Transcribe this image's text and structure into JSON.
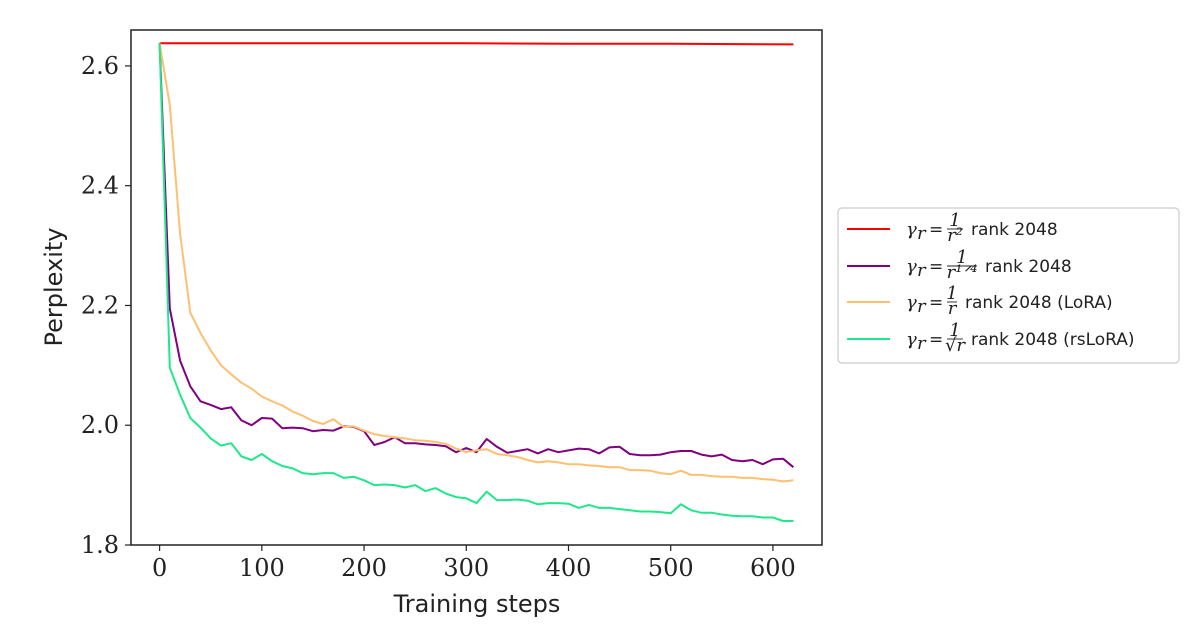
{
  "chart_data": {
    "type": "line",
    "xlabel": "Training steps",
    "ylabel": "Perplexity",
    "xlim": [
      -28,
      648
    ],
    "ylim": [
      1.8,
      2.66
    ],
    "xticks": [
      0,
      100,
      200,
      300,
      400,
      500,
      600
    ],
    "yticks": [
      1.8,
      2.0,
      2.2,
      2.4,
      2.6
    ],
    "xtick_labels": [
      "0",
      "100",
      "200",
      "300",
      "400",
      "500",
      "600"
    ],
    "ytick_labels": [
      "1.8",
      "2.0",
      "2.2",
      "2.4",
      "2.6"
    ],
    "grid": false,
    "legend_position": "outside-right",
    "series": [
      {
        "name": "γr = 1/r² rank 2048",
        "legend_math": "γ",
        "legend_sub": "r",
        "legend_eq": "=",
        "legend_num": "1",
        "legend_den": "r²",
        "legend_text": "rank 2048",
        "color": "#ff0000",
        "x": [
          0,
          100,
          200,
          300,
          400,
          500,
          620
        ],
        "y": [
          2.638,
          2.638,
          2.638,
          2.638,
          2.637,
          2.637,
          2.636
        ]
      },
      {
        "name": "γr = 1/r^(1/4) rank 2048",
        "legend_math": "γ",
        "legend_sub": "r",
        "legend_eq": "=",
        "legend_num": "1",
        "legend_den": "r¹ᐟ⁴",
        "legend_text": "rank 2048",
        "color": "#800080",
        "x": [
          0,
          10,
          20,
          30,
          40,
          50,
          60,
          70,
          80,
          90,
          100,
          110,
          120,
          130,
          140,
          150,
          160,
          170,
          180,
          190,
          200,
          210,
          220,
          230,
          240,
          250,
          260,
          270,
          280,
          290,
          300,
          310,
          320,
          330,
          340,
          350,
          360,
          370,
          380,
          390,
          400,
          410,
          420,
          430,
          440,
          450,
          460,
          470,
          480,
          490,
          500,
          510,
          520,
          530,
          540,
          550,
          560,
          570,
          580,
          590,
          600,
          610,
          620
        ],
        "y": [
          2.638,
          2.195,
          2.108,
          2.065,
          2.04,
          2.034,
          2.027,
          2.03,
          2.008,
          2.0,
          2.012,
          2.011,
          1.995,
          1.996,
          1.995,
          1.99,
          1.992,
          1.991,
          1.998,
          1.997,
          1.99,
          1.967,
          1.972,
          1.98,
          1.97,
          1.97,
          1.968,
          1.967,
          1.965,
          1.955,
          1.962,
          1.955,
          1.977,
          1.964,
          1.954,
          1.957,
          1.96,
          1.953,
          1.96,
          1.955,
          1.958,
          1.961,
          1.96,
          1.953,
          1.963,
          1.964,
          1.952,
          1.95,
          1.95,
          1.951,
          1.955,
          1.957,
          1.957,
          1.951,
          1.948,
          1.951,
          1.942,
          1.94,
          1.942,
          1.935,
          1.943,
          1.944,
          1.93
        ]
      },
      {
        "name": "γr = 1/r rank 2048 (LoRA)",
        "legend_math": "γ",
        "legend_sub": "r",
        "legend_eq": "=",
        "legend_num": "1",
        "legend_den": "r",
        "legend_text": "rank 2048 (LoRA)",
        "color": "#ffbf70",
        "x": [
          0,
          10,
          20,
          30,
          40,
          50,
          60,
          70,
          80,
          90,
          100,
          110,
          120,
          130,
          140,
          150,
          160,
          170,
          180,
          190,
          200,
          210,
          220,
          230,
          240,
          250,
          260,
          270,
          280,
          290,
          300,
          310,
          320,
          330,
          340,
          350,
          360,
          370,
          380,
          390,
          400,
          410,
          420,
          430,
          440,
          450,
          460,
          470,
          480,
          490,
          500,
          510,
          520,
          530,
          540,
          550,
          560,
          570,
          580,
          590,
          600,
          610,
          620
        ],
        "y": [
          2.638,
          2.535,
          2.32,
          2.188,
          2.154,
          2.125,
          2.1,
          2.085,
          2.071,
          2.061,
          2.048,
          2.04,
          2.033,
          2.023,
          2.016,
          2.007,
          2.002,
          2.01,
          1.997,
          1.998,
          1.991,
          1.985,
          1.982,
          1.98,
          1.978,
          1.975,
          1.974,
          1.972,
          1.969,
          1.961,
          1.955,
          1.958,
          1.96,
          1.952,
          1.95,
          1.947,
          1.942,
          1.938,
          1.94,
          1.938,
          1.935,
          1.935,
          1.933,
          1.932,
          1.93,
          1.93,
          1.925,
          1.925,
          1.924,
          1.92,
          1.918,
          1.924,
          1.917,
          1.917,
          1.915,
          1.914,
          1.914,
          1.912,
          1.912,
          1.91,
          1.909,
          1.906,
          1.908
        ]
      },
      {
        "name": "γr = 1/√r rank 2048 (rsLoRA)",
        "legend_math": "γ",
        "legend_sub": "r",
        "legend_eq": "=",
        "legend_num": "1",
        "legend_den": "√r",
        "legend_text": "rank 2048 (rsLoRA)",
        "color": "#1fe88a",
        "x": [
          0,
          10,
          20,
          30,
          40,
          50,
          60,
          70,
          80,
          90,
          100,
          110,
          120,
          130,
          140,
          150,
          160,
          170,
          180,
          190,
          200,
          210,
          220,
          230,
          240,
          250,
          260,
          270,
          280,
          290,
          300,
          310,
          320,
          330,
          340,
          350,
          360,
          370,
          380,
          390,
          400,
          410,
          420,
          430,
          440,
          450,
          460,
          470,
          480,
          490,
          500,
          510,
          520,
          530,
          540,
          550,
          560,
          570,
          580,
          590,
          600,
          610,
          620
        ],
        "y": [
          2.638,
          2.096,
          2.051,
          2.012,
          1.996,
          1.978,
          1.966,
          1.97,
          1.948,
          1.942,
          1.952,
          1.94,
          1.932,
          1.928,
          1.92,
          1.918,
          1.92,
          1.92,
          1.912,
          1.914,
          1.908,
          1.9,
          1.901,
          1.9,
          1.896,
          1.9,
          1.89,
          1.895,
          1.886,
          1.88,
          1.878,
          1.87,
          1.889,
          1.875,
          1.875,
          1.876,
          1.874,
          1.868,
          1.87,
          1.87,
          1.869,
          1.862,
          1.867,
          1.862,
          1.862,
          1.86,
          1.858,
          1.856,
          1.856,
          1.855,
          1.853,
          1.868,
          1.858,
          1.854,
          1.854,
          1.851,
          1.849,
          1.848,
          1.848,
          1.846,
          1.846,
          1.84,
          1.84
        ]
      }
    ]
  }
}
